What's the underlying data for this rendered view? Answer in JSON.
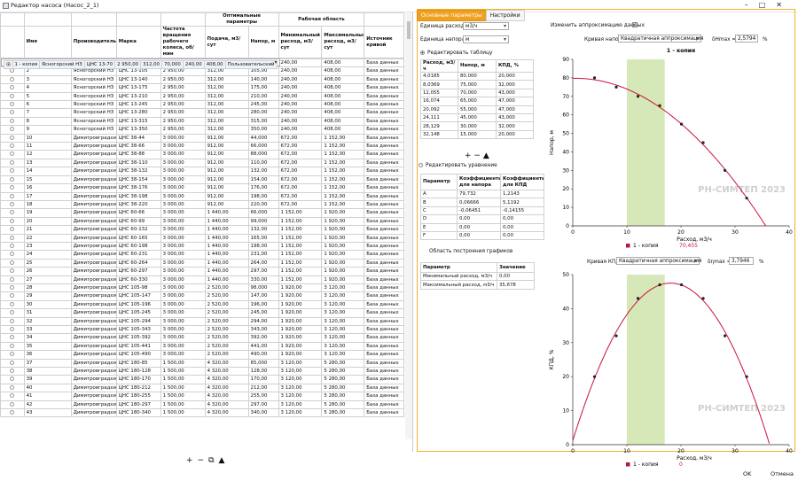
{
  "window": {
    "title": "Редактор насоса (Насос_2_1)"
  },
  "table": {
    "group_headers": {
      "optimal": "Оптимальные параметры",
      "work": "Рабочая область"
    },
    "columns": [
      "Имя",
      "Производитель",
      "Марка",
      "Частота вращения рабочего колеса, об/мин",
      "Подача, м3/сут",
      "Напор, м",
      "Минимальный расход, м3/сут",
      "Максимальный расход, м3/сут",
      "Источник кривой"
    ],
    "rows": [
      [
        "1 - копия",
        "Ясногорский НЗ",
        "ЦНС 13-70",
        "2 950,00",
        "312,00",
        "70,000",
        "240,00",
        "408,00",
        "Пользовательский"
      ],
      [
        "1",
        "Ясногорский НЗ",
        "ЦНС 13-70",
        "2 950,00",
        "312,00",
        "70,000",
        "240,00",
        "408,00",
        "База данных"
      ],
      [
        "2",
        "Ясногорский НЗ",
        "ЦНС 13-105",
        "2 950,00",
        "312,00",
        "105,00",
        "240,00",
        "408,00",
        "База данных"
      ],
      [
        "3",
        "Ясногорский НЗ",
        "ЦНС 13-140",
        "2 950,00",
        "312,00",
        "140,00",
        "240,00",
        "408,00",
        "База данных"
      ],
      [
        "4",
        "Ясногорский НЗ",
        "ЦНС 13-175",
        "2 950,00",
        "312,00",
        "175,00",
        "240,00",
        "408,00",
        "База данных"
      ],
      [
        "5",
        "Ясногорский НЗ",
        "ЦНС 13-210",
        "2 950,00",
        "312,00",
        "210,00",
        "240,00",
        "408,00",
        "База данных"
      ],
      [
        "6",
        "Ясногорский НЗ",
        "ЦНС 13-245",
        "2 950,00",
        "312,00",
        "245,00",
        "240,00",
        "408,00",
        "База данных"
      ],
      [
        "7",
        "Ясногорский НЗ",
        "ЦНС 13-280",
        "2 950,00",
        "312,00",
        "280,00",
        "240,00",
        "408,00",
        "База данных"
      ],
      [
        "8",
        "Ясногорский НЗ",
        "ЦНС 13-315",
        "2 950,00",
        "312,00",
        "315,00",
        "240,00",
        "408,00",
        "База данных"
      ],
      [
        "9",
        "Ясногорский НЗ",
        "ЦНС 13-350",
        "2 950,00",
        "312,00",
        "350,00",
        "240,00",
        "408,00",
        "База данных"
      ],
      [
        "10",
        "Димитровградхи",
        "ЦНС 38-44",
        "3 000,00",
        "912,00",
        "44,000",
        "672,00",
        "1 152,00",
        "База данных"
      ],
      [
        "11",
        "Димитровградхи",
        "ЦНС 38-66",
        "3 000,00",
        "912,00",
        "66,000",
        "672,00",
        "1 152,00",
        "База данных"
      ],
      [
        "12",
        "Димитровградхи",
        "ЦНС 38-88",
        "3 000,00",
        "912,00",
        "88,000",
        "672,00",
        "1 152,00",
        "База данных"
      ],
      [
        "13",
        "Димитровградхи",
        "ЦНС 38-110",
        "3 000,00",
        "912,00",
        "110,00",
        "672,00",
        "1 152,00",
        "База данных"
      ],
      [
        "14",
        "Димитровградхи",
        "ЦНС 38-132",
        "3 000,00",
        "912,00",
        "132,00",
        "672,00",
        "1 152,00",
        "База данных"
      ],
      [
        "15",
        "Димитровградхи",
        "ЦНС 38-154",
        "3 000,00",
        "912,00",
        "154,00",
        "672,00",
        "1 152,00",
        "База данных"
      ],
      [
        "16",
        "Димитровградхи",
        "ЦНС 38-176",
        "3 000,00",
        "912,00",
        "176,00",
        "672,00",
        "1 152,00",
        "База данных"
      ],
      [
        "17",
        "Димитровградхи",
        "ЦНС 38-198",
        "3 000,00",
        "912,00",
        "198,00",
        "672,00",
        "1 152,00",
        "База данных"
      ],
      [
        "18",
        "Димитровградхи",
        "ЦНС 38-220",
        "3 000,00",
        "912,00",
        "220,00",
        "672,00",
        "1 152,00",
        "База данных"
      ],
      [
        "19",
        "Димитровградхи",
        "ЦНС 60-66",
        "3 000,00",
        "1 440,00",
        "66,000",
        "1 152,00",
        "1 920,00",
        "База данных"
      ],
      [
        "20",
        "Димитровградхи",
        "ЦНС 60-99",
        "3 000,00",
        "1 440,00",
        "99,000",
        "1 152,00",
        "1 920,00",
        "База данных"
      ],
      [
        "21",
        "Димитровградхи",
        "ЦНС 60-132",
        "3 000,00",
        "1 440,00",
        "132,00",
        "1 152,00",
        "1 920,00",
        "База данных"
      ],
      [
        "22",
        "Димитровградхи",
        "ЦНС 60-165",
        "3 000,00",
        "1 440,00",
        "165,00",
        "1 152,00",
        "1 920,00",
        "База данных"
      ],
      [
        "23",
        "Димитровградхи",
        "ЦНС 60-198",
        "3 000,00",
        "1 440,00",
        "198,00",
        "1 152,00",
        "1 920,00",
        "База данных"
      ],
      [
        "24",
        "Димитровградхи",
        "ЦНС 60-231",
        "3 000,00",
        "1 440,00",
        "231,00",
        "1 152,00",
        "1 920,00",
        "База данных"
      ],
      [
        "25",
        "Димитровградхи",
        "ЦНС 60-264",
        "3 000,00",
        "1 440,00",
        "264,00",
        "1 152,00",
        "1 920,00",
        "База данных"
      ],
      [
        "26",
        "Димитровградхи",
        "ЦНС 60-297",
        "3 000,00",
        "1 440,00",
        "297,00",
        "1 152,00",
        "1 920,00",
        "База данных"
      ],
      [
        "27",
        "Димитровградхи",
        "ЦНС 60-330",
        "3 000,00",
        "1 440,00",
        "330,00",
        "1 152,00",
        "1 920,00",
        "База данных"
      ],
      [
        "28",
        "Димитровградхи",
        "ЦНС 105-98",
        "3 000,00",
        "2 520,00",
        "98,000",
        "1 920,00",
        "3 120,00",
        "База данных"
      ],
      [
        "29",
        "Димитровградхи",
        "ЦНС 105-147",
        "3 000,00",
        "2 520,00",
        "147,00",
        "1 920,00",
        "3 120,00",
        "База данных"
      ],
      [
        "30",
        "Димитровградхи",
        "ЦНС 105-196",
        "3 000,00",
        "2 520,00",
        "196,00",
        "1 920,00",
        "3 120,00",
        "База данных"
      ],
      [
        "31",
        "Димитровградхи",
        "ЦНС 105-245",
        "3 000,00",
        "2 520,00",
        "245,00",
        "1 920,00",
        "3 120,00",
        "База данных"
      ],
      [
        "32",
        "Димитровградхи",
        "ЦНС 105-294",
        "3 000,00",
        "2 520,00",
        "294,00",
        "1 920,00",
        "3 120,00",
        "База данных"
      ],
      [
        "33",
        "Димитровградхи",
        "ЦНС 105-343",
        "3 000,00",
        "2 520,00",
        "343,00",
        "1 920,00",
        "3 120,00",
        "База данных"
      ],
      [
        "34",
        "Димитровградхи",
        "ЦНС 105-392",
        "3 000,00",
        "2 520,00",
        "392,00",
        "1 920,00",
        "3 120,00",
        "База данных"
      ],
      [
        "35",
        "Димитровградхи",
        "ЦНС 105-441",
        "3 000,00",
        "2 520,00",
        "441,00",
        "1 920,00",
        "3 120,00",
        "База данных"
      ],
      [
        "36",
        "Димитровградхи",
        "ЦНС 105-490",
        "3 000,00",
        "2 520,00",
        "490,00",
        "1 920,00",
        "3 120,00",
        "База данных"
      ],
      [
        "37",
        "Димитровградхи",
        "ЦНС 180-85",
        "1 500,00",
        "4 320,00",
        "85,000",
        "3 120,00",
        "5 280,00",
        "База данных"
      ],
      [
        "38",
        "Димитровградхи",
        "ЦНС 180-128",
        "1 500,00",
        "4 320,00",
        "128,00",
        "3 120,00",
        "5 280,00",
        "База данных"
      ],
      [
        "39",
        "Димитровградхи",
        "ЦНС 180-170",
        "1 500,00",
        "4 320,00",
        "170,00",
        "3 120,00",
        "5 280,00",
        "База данных"
      ],
      [
        "40",
        "Димитровградхи",
        "ЦНС 180-212",
        "1 500,00",
        "4 320,00",
        "212,00",
        "3 120,00",
        "5 280,00",
        "База данных"
      ],
      [
        "41",
        "Димитровградхи",
        "ЦНС 180-255",
        "1 500,00",
        "4 320,00",
        "255,00",
        "3 120,00",
        "5 280,00",
        "База данных"
      ],
      [
        "42",
        "Димитровградхи",
        "ЦНС 180-297",
        "1 500,00",
        "4 320,00",
        "297,00",
        "3 120,00",
        "5 280,00",
        "База данных"
      ],
      [
        "43",
        "Димитровградхи",
        "ЦНС 180-340",
        "1 500,00",
        "4 320,00",
        "340,00",
        "3 120,00",
        "5 280,00",
        "База данных"
      ]
    ]
  },
  "tabs": [
    "Основные параметры",
    "Настройки"
  ],
  "params": {
    "flow_unit_label": "Единица расхода",
    "flow_unit": "м3/ч",
    "head_unit_label": "Единица напора",
    "head_unit": "м",
    "edit_table": "Редактировать таблицу",
    "points_headers": [
      "Расход, м3/ч",
      "Напор, м",
      "КПД, %"
    ],
    "points": [
      [
        "4,0185",
        "80,000",
        "20,000"
      ],
      [
        "8,0369",
        "75,000",
        "32,000"
      ],
      [
        "12,055",
        "70,000",
        "43,000"
      ],
      [
        "16,074",
        "65,000",
        "47,000"
      ],
      [
        "20,092",
        "55,000",
        "47,000"
      ],
      [
        "24,111",
        "45,000",
        "43,000"
      ],
      [
        "28,129",
        "30,000",
        "32,000"
      ],
      [
        "32,148",
        "15,000",
        "20,000"
      ]
    ],
    "edit_equation": "Редактировать уравнение",
    "coef_headers": [
      "Параметр",
      "Коэффициенты для напора",
      "Коэффициенты для КПД"
    ],
    "coefs": [
      [
        "A",
        "79,732",
        "1,2143"
      ],
      [
        "B",
        "0,06666",
        "5,1192"
      ],
      [
        "C",
        "-0,06451",
        "-0,14155"
      ],
      [
        "D",
        "0,00",
        "0,00"
      ],
      [
        "E",
        "0,00",
        "0,00"
      ],
      [
        "F",
        "0,00",
        "0,00"
      ]
    ],
    "area_title": "Область построения графиков",
    "area_headers": [
      "Параметр",
      "Значение"
    ],
    "area_rows": [
      [
        "Минимальный расход, м3/ч",
        "0,00"
      ],
      [
        "Максимальный расход, м3/ч",
        "35,678"
      ]
    ]
  },
  "approx": {
    "change_label": "Изменить аппроксимацию данных",
    "change_checked": "✓"
  },
  "head_chart": {
    "curve_label": "Кривая напора",
    "method": "Квадратичная аппроксимация",
    "delta_label": "δHmax =",
    "delta_value": "2,5794",
    "delta_unit": "%"
  },
  "eff_chart": {
    "curve_label": "Кривая КПД",
    "method": "Квадратичная аппроксимация",
    "delta_label": "δηmax =",
    "delta_value": "3,7946",
    "delta_unit": "%"
  },
  "watermark": {
    "brand": "РН-СИМТЕП 2023"
  },
  "chart_data": [
    {
      "type": "scatter",
      "title": "1 - копия",
      "xlabel": "Расход, м3/ч",
      "ylabel": "Напор, м",
      "xlim": [
        0,
        40
      ],
      "ylim": [
        0,
        90
      ],
      "xticks": [
        "0",
        "10",
        "20",
        "30",
        "40"
      ],
      "yticks": [
        "0",
        "10",
        "20",
        "30",
        "40",
        "50",
        "60",
        "70",
        "80",
        "90"
      ],
      "series": [
        {
          "name": "1 - копия",
          "x": [
            4.0185,
            8.0369,
            12.055,
            16.074,
            20.092,
            24.111,
            28.129,
            32.148
          ],
          "y": [
            80,
            75,
            70,
            65,
            55,
            45,
            30,
            15
          ]
        }
      ],
      "curve": {
        "A": 79.732,
        "B": 0.06666,
        "C": -0.06451
      },
      "work_range": [
        10,
        17
      ],
      "x_readout": "70,455",
      "legend": "bottom-left"
    },
    {
      "type": "scatter",
      "xlabel": "Расход, м3/ч",
      "ylabel": "КПД, %",
      "xlim": [
        0,
        40
      ],
      "ylim": [
        0,
        50
      ],
      "xticks": [
        "0",
        "10",
        "20",
        "30",
        "40"
      ],
      "yticks": [
        "0",
        "10",
        "20",
        "30",
        "40",
        "50"
      ],
      "series": [
        {
          "name": "1 - копия",
          "x": [
            4.0185,
            8.0369,
            12.055,
            16.074,
            20.092,
            24.111,
            28.129,
            32.148
          ],
          "y": [
            20,
            32,
            43,
            47,
            47,
            43,
            32,
            20
          ]
        }
      ],
      "curve": {
        "A": 1.2143,
        "B": 5.1192,
        "C": -0.14155
      },
      "work_range": [
        10,
        17
      ],
      "x_readout": "0",
      "legend": "bottom-left"
    }
  ],
  "footer": {
    "ok": "OK",
    "cancel": "Отмена"
  }
}
